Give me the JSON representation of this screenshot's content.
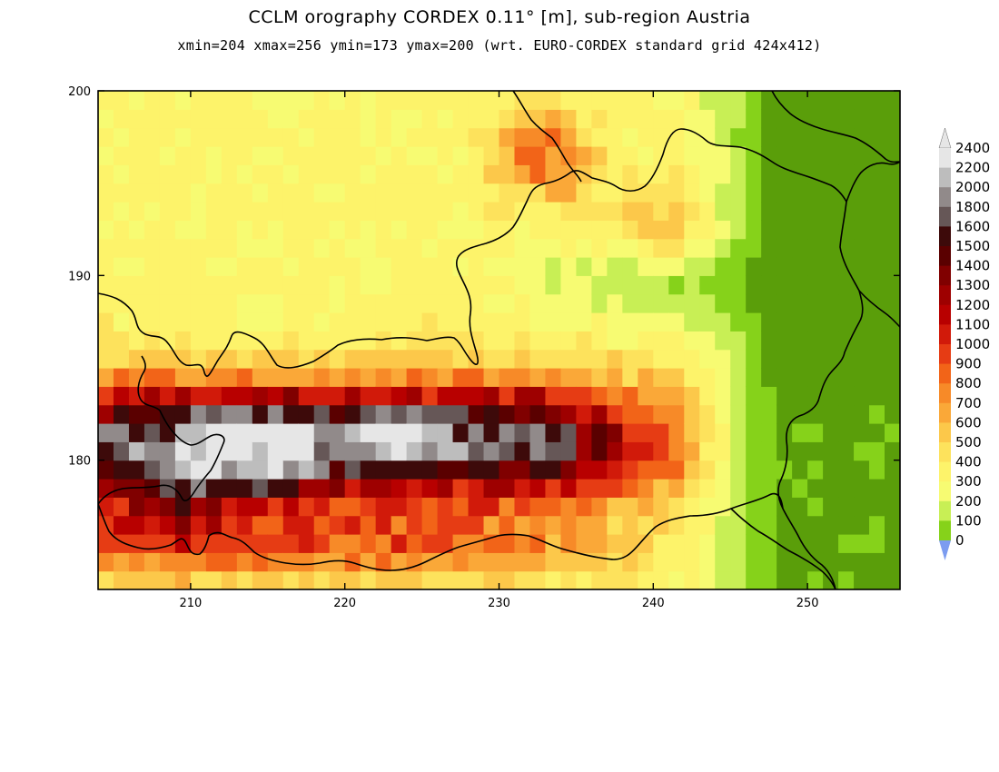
{
  "header": {
    "title": "CCLM orography CORDEX 0.11° [m], sub-region Austria",
    "subtitle": "xmin=204 xmax=256 ymin=173 ymax=200 (wrt. EURO-CORDEX standard grid 424x412)"
  },
  "map": {
    "x_range": [
      204,
      256
    ],
    "y_range": [
      173,
      200
    ],
    "x_ticks": [
      210,
      220,
      230,
      240,
      250
    ],
    "y_ticks": [
      180,
      190,
      200
    ],
    "x_tick_labels": [
      "210",
      "220",
      "230",
      "240",
      "250"
    ],
    "y_tick_labels": [
      "180",
      "190",
      "200"
    ],
    "grid_resolution": 1
  },
  "colorbar": {
    "levels": [
      "2400",
      "2200",
      "2000",
      "1800",
      "1600",
      "1500",
      "1400",
      "1300",
      "1200",
      "1100",
      "1000",
      "900",
      "800",
      "700",
      "600",
      "500",
      "400",
      "300",
      "200",
      "100",
      "0"
    ],
    "colors": [
      "#e6e6e6",
      "#bdbdbd",
      "#918a8a",
      "#665757",
      "#3d0a0a",
      "#5a0000",
      "#800000",
      "#9e0000",
      "#b80000",
      "#d11a0a",
      "#e63c14",
      "#f26418",
      "#f78a28",
      "#faa838",
      "#fcc84a",
      "#fde25c",
      "#fdf36a",
      "#f7fb72",
      "#c8ef55",
      "#86d21a",
      "#5a9e0a"
    ],
    "over_color": "#e6e6e6",
    "under_color": "#7c9cf0"
  }
}
